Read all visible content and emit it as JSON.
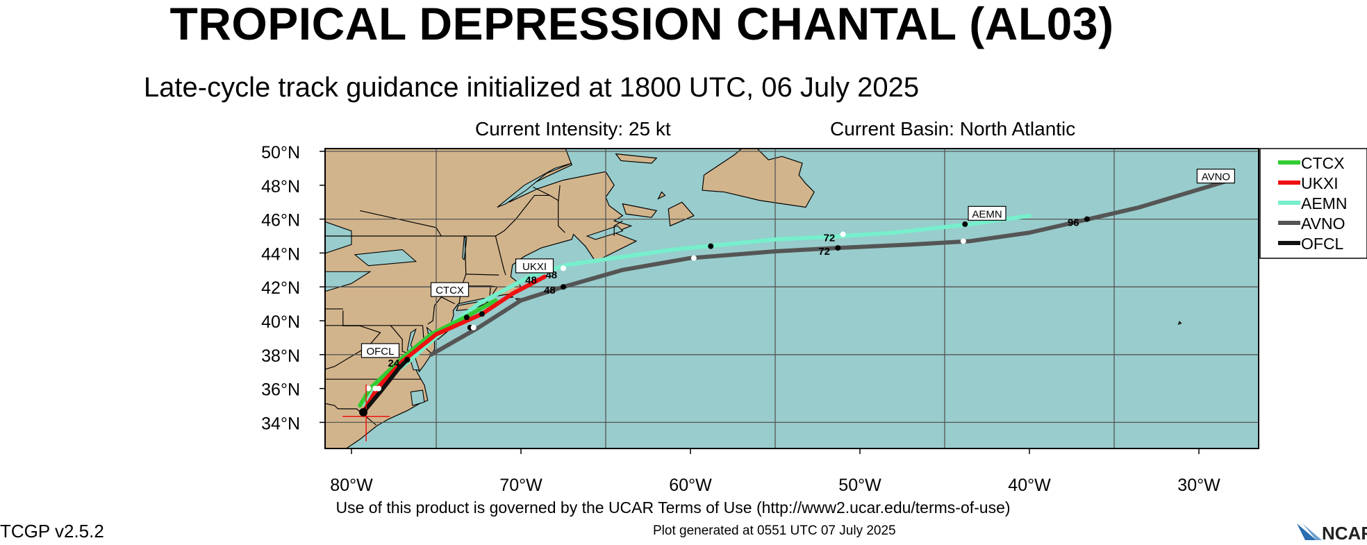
{
  "header": {
    "title": "TROPICAL DEPRESSION CHANTAL (AL03)",
    "subtitle": "Late-cycle track guidance initialized at 1800 UTC, 06 July 2025",
    "intensity": "Current Intensity: 25 kt",
    "basin": "Current Basin: North Atlantic"
  },
  "footer": {
    "terms": "Use of this product is governed by the UCAR Terms of Use (http://www2.ucar.edu/terms-of-use)",
    "generated": "Plot generated at 0551 UTC   07 July 2025",
    "version": "TCGP v2.5.2",
    "logo_text": "NCAR"
  },
  "map": {
    "lat_labels": [
      "50°N",
      "48°N",
      "46°N",
      "44°N",
      "42°N",
      "40°N",
      "38°N",
      "36°N",
      "34°N"
    ],
    "lon_labels": [
      "80°W",
      "70°W",
      "60°W",
      "50°W",
      "40°W",
      "30°W"
    ],
    "colors": {
      "ocean": "#99cccc",
      "land": "#d2b48c",
      "grid": "#555555"
    }
  },
  "legend": [
    {
      "name": "CTCX",
      "color": "#33cc33"
    },
    {
      "name": "UKXI",
      "color": "#ee1111"
    },
    {
      "name": "AEMN",
      "color": "#77eecc"
    },
    {
      "name": "AVNO",
      "color": "#555555"
    },
    {
      "name": "OFCL",
      "color": "#111111"
    }
  ],
  "tracks": [
    {
      "name": "AEMN",
      "color": "#77eecc",
      "label": "AEMN",
      "points": [
        [
          35.0,
          -79.2
        ],
        [
          36.0,
          -78.6
        ],
        [
          37.8,
          -76.4
        ],
        [
          39.5,
          -74.5
        ],
        [
          41.0,
          -72.5
        ],
        [
          42.6,
          -69.5
        ],
        [
          43.3,
          -67.3
        ],
        [
          44.2,
          -61
        ],
        [
          44.4,
          -59
        ],
        [
          44.8,
          -55
        ],
        [
          45.0,
          -51
        ],
        [
          45.2,
          -48
        ],
        [
          45.7,
          -43.5
        ],
        [
          46.2,
          -40.0
        ]
      ],
      "markers": [
        [
          36.0,
          -78.6
        ],
        [
          39.6,
          -73.0
        ],
        [
          43.1,
          -67.5
        ],
        [
          44.4,
          -58.8
        ],
        [
          45.1,
          -51.0
        ],
        [
          45.7,
          -43.8
        ]
      ],
      "marker_labels": []
    },
    {
      "name": "AVNO",
      "color": "#555555",
      "label": "AVNO",
      "points": [
        [
          38.0,
          -75.3
        ],
        [
          39.6,
          -72.5
        ],
        [
          41.2,
          -70.0
        ],
        [
          42.0,
          -67.5
        ],
        [
          43.0,
          -64.0
        ],
        [
          43.7,
          -60.0
        ],
        [
          44.1,
          -55.0
        ],
        [
          44.3,
          -51.3
        ],
        [
          44.5,
          -47.0
        ],
        [
          44.7,
          -43.5
        ],
        [
          45.2,
          -40.0
        ],
        [
          46.0,
          -36.5
        ],
        [
          46.7,
          -33.5
        ],
        [
          48.2,
          -28.5
        ]
      ],
      "markers": [
        [
          39.6,
          -72.8
        ],
        [
          42.0,
          -67.5
        ],
        [
          43.7,
          -59.8
        ],
        [
          44.3,
          -51.3
        ],
        [
          44.7,
          -43.9
        ],
        [
          46.0,
          -36.6
        ]
      ],
      "marker_labels": [
        {
          "at": [
            42.0,
            -67.5
          ],
          "text": "48"
        },
        {
          "at": [
            44.3,
            -51.3
          ],
          "text": "72"
        },
        {
          "at": [
            46.0,
            -36.6
          ],
          "text": "96"
        }
      ]
    },
    {
      "name": "CTCX",
      "color": "#33cc33",
      "label": "CTCX",
      "points": [
        [
          35.0,
          -79.5
        ],
        [
          36.0,
          -78.9
        ],
        [
          37.8,
          -77.0
        ],
        [
          39.2,
          -75.3
        ],
        [
          40.2,
          -73.3
        ],
        [
          41.2,
          -71.5
        ]
      ],
      "markers": [
        [
          36.0,
          -79.0
        ],
        [
          40.2,
          -73.2
        ]
      ],
      "marker_labels": []
    },
    {
      "name": "UKXI",
      "color": "#ee1111",
      "label": "UKXI",
      "points": [
        [
          34.6,
          -79.3
        ],
        [
          36.0,
          -78.5
        ],
        [
          37.6,
          -77.0
        ],
        [
          39.2,
          -75.0
        ],
        [
          40.4,
          -72.3
        ],
        [
          41.6,
          -70.5
        ],
        [
          42.6,
          -68.6
        ]
      ],
      "markers": [
        [
          36.0,
          -78.4
        ],
        [
          40.4,
          -72.3
        ]
      ],
      "marker_labels": [
        {
          "at": [
            42.6,
            -68.6
          ],
          "text": "48"
        }
      ]
    },
    {
      "name": "OFCL",
      "color": "#111111",
      "label": "OFCL",
      "points": [
        [
          34.6,
          -79.3
        ],
        [
          35.8,
          -78.3
        ],
        [
          37.2,
          -77.2
        ],
        [
          37.7,
          -76.7
        ]
      ],
      "markers": [
        [
          34.6,
          -79.3
        ],
        [
          37.7,
          -76.7
        ]
      ],
      "marker_labels": [
        {
          "at": [
            37.7,
            -76.7
          ],
          "text": "24"
        }
      ]
    }
  ],
  "extra_labels": [
    {
      "at": [
        42.9,
        -67.4
      ],
      "text": "48"
    },
    {
      "at": [
        45.1,
        -51.0
      ],
      "text": "72"
    }
  ]
}
